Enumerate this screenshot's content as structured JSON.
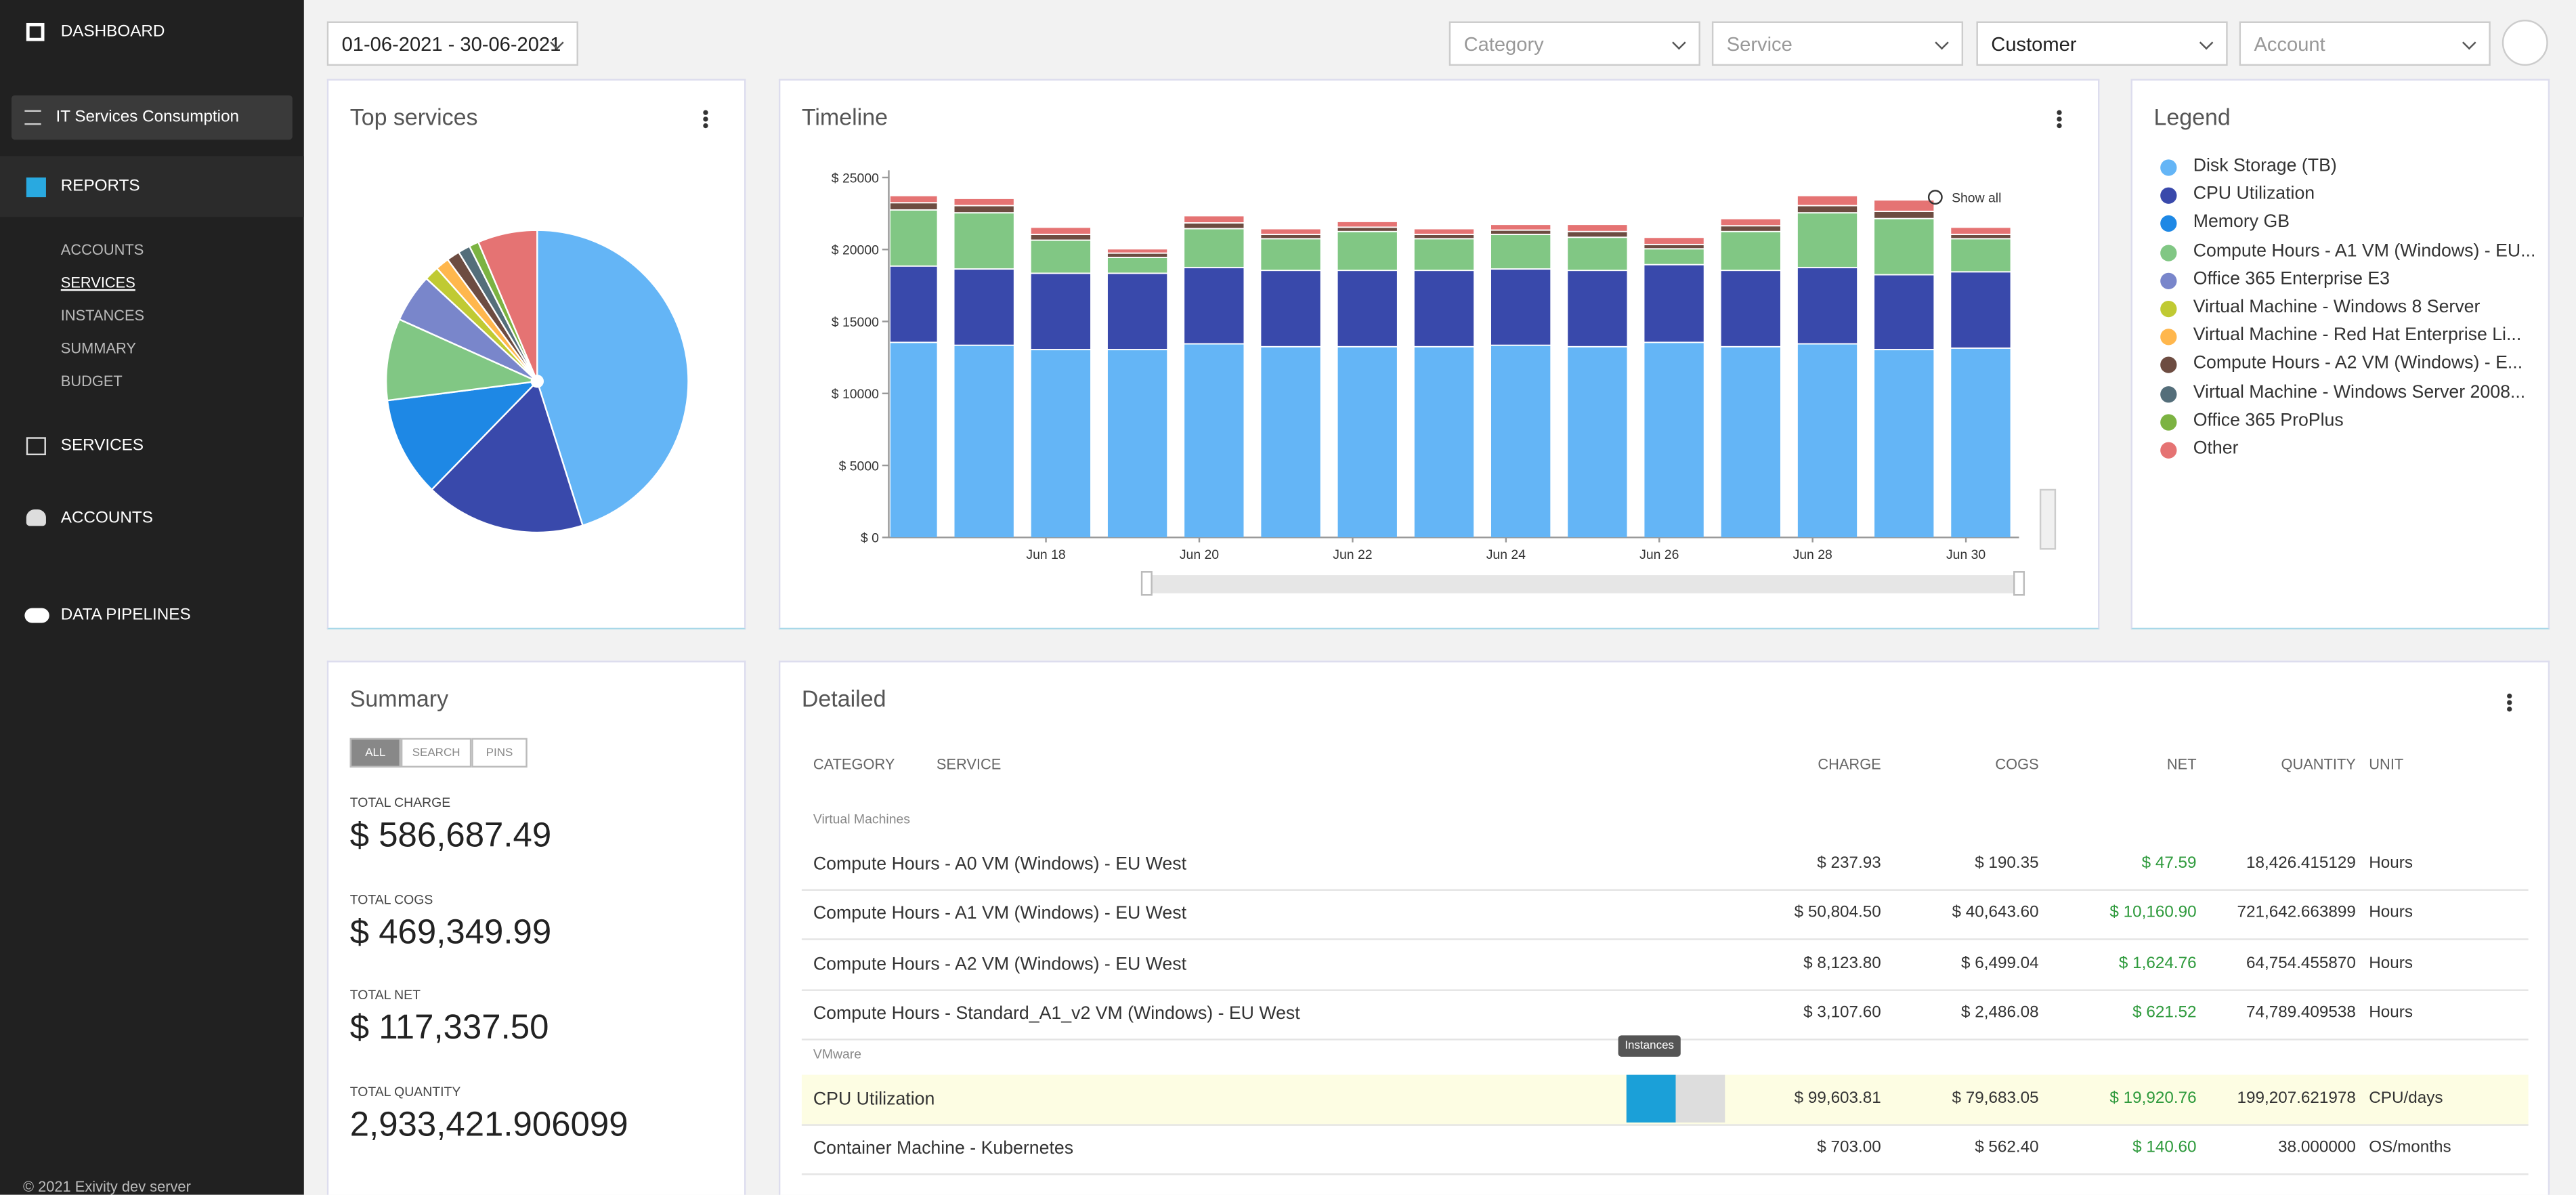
{
  "sidebar": {
    "dashboard": "DASHBOARD",
    "report_select": "IT Services Consumption",
    "reports": "REPORTS",
    "report_links": [
      "ACCOUNTS",
      "SERVICES",
      "INSTANCES",
      "SUMMARY",
      "BUDGET"
    ],
    "services": "SERVICES",
    "accounts": "ACCOUNTS",
    "pipelines": "DATA PIPELINES",
    "footer": "© 2021 Exivity dev server"
  },
  "filters": {
    "date_range": "01-06-2021 - 30-06-2021",
    "category": "Category",
    "service": "Service",
    "customer": "Customer",
    "account": "Account"
  },
  "top_services": {
    "title": "Top services",
    "chart_data": {
      "type": "pie",
      "categories": [
        "Disk Storage (TB)",
        "CPU Utilization",
        "Memory GB",
        "Compute Hours - A1 VM (Windows) - EU...",
        "Office 365 Enterprise E3",
        "Virtual Machine - Windows 8 Server",
        "Virtual Machine - Red Hat Enterprise Li...",
        "Compute Hours - A2 VM (Windows) - E...",
        "Virtual Machine - Windows Server 2008...",
        "Office 365 ProPlus",
        "Other"
      ],
      "values": [
        262000,
        99600,
        62000,
        50800,
        30000,
        9000,
        8500,
        8100,
        7500,
        6000,
        37000
      ],
      "colors": [
        "#64b5f6",
        "#3949ab",
        "#1e88e5",
        "#81c784",
        "#7986cb",
        "#c0ca33",
        "#ffb74d",
        "#6d4c41",
        "#546e7a",
        "#7cb342",
        "#e57373"
      ]
    }
  },
  "timeline": {
    "title": "Timeline",
    "show_all": "Show all",
    "chart_data": {
      "type": "bar",
      "stacked": true,
      "categories": [
        null,
        null,
        "Jun 18",
        null,
        "Jun 20",
        null,
        "Jun 22",
        null,
        "Jun 24",
        null,
        "Jun 26",
        null,
        "Jun 28",
        null,
        "Jun 30"
      ],
      "series": [
        {
          "color": "#64b5f6",
          "values": [
            13500,
            13300,
            13000,
            13000,
            13400,
            13200,
            13200,
            13200,
            13300,
            13200,
            13500,
            13200,
            13400,
            13000,
            13100
          ]
        },
        {
          "color": "#3949ab",
          "values": [
            5300,
            5300,
            5300,
            5300,
            5300,
            5300,
            5300,
            5300,
            5300,
            5300,
            5400,
            5300,
            5300,
            5200,
            5300
          ]
        },
        {
          "color": "#81c784",
          "values": [
            3900,
            3900,
            2300,
            1100,
            2700,
            2200,
            2700,
            2200,
            2400,
            2300,
            1100,
            2700,
            3800,
            3900,
            2300
          ]
        },
        {
          "color": "#6d4c41",
          "values": [
            500,
            500,
            400,
            300,
            400,
            300,
            300,
            300,
            300,
            400,
            300,
            400,
            500,
            500,
            300
          ]
        },
        {
          "color": "#e57373",
          "values": [
            500,
            500,
            500,
            300,
            500,
            400,
            400,
            400,
            400,
            500,
            500,
            500,
            700,
            800,
            500
          ]
        }
      ],
      "ylim": [
        0,
        25500
      ],
      "yticks": [
        {
          "value": 0,
          "label": "$ 0"
        },
        {
          "value": 5000,
          "label": "$ 5000"
        },
        {
          "value": 10000,
          "label": "$ 10000"
        },
        {
          "value": 15000,
          "label": "$ 15000"
        },
        {
          "value": 20000,
          "label": "$ 20000"
        },
        {
          "value": 25000,
          "label": "$ 25000"
        }
      ]
    }
  },
  "legend": {
    "title": "Legend"
  },
  "summary": {
    "title": "Summary",
    "tabs": [
      "ALL",
      "SEARCH",
      "PINS"
    ],
    "stats": [
      {
        "label": "TOTAL CHARGE",
        "value": "$ 586,687.49"
      },
      {
        "label": "TOTAL COGS",
        "value": "$ 469,349.99"
      },
      {
        "label": "TOTAL NET",
        "value": "$ 117,337.50"
      },
      {
        "label": "TOTAL QUANTITY",
        "value": "2,933,421.906099"
      }
    ]
  },
  "detailed": {
    "title": "Detailed",
    "columns": [
      "CATEGORY",
      "SERVICE",
      "CHARGE",
      "COGS",
      "NET",
      "QUANTITY",
      "UNIT"
    ],
    "tooltip": "Instances",
    "groups": [
      {
        "name": "Virtual Machines",
        "rows": [
          [
            "Compute Hours - A0 VM (Windows) - EU West",
            "$ 237.93",
            "$ 190.35",
            "$ 47.59",
            "18,426.415129",
            "Hours"
          ],
          [
            "Compute Hours - A1 VM (Windows) - EU West",
            "$ 50,804.50",
            "$ 40,643.60",
            "$ 10,160.90",
            "721,642.663899",
            "Hours"
          ],
          [
            "Compute Hours - A2 VM (Windows) - EU West",
            "$ 8,123.80",
            "$ 6,499.04",
            "$ 1,624.76",
            "64,754.455870",
            "Hours"
          ],
          [
            "Compute Hours - Standard_A1_v2 VM (Windows) - EU West",
            "$ 3,107.60",
            "$ 2,486.08",
            "$ 621.52",
            "74,789.409538",
            "Hours"
          ]
        ]
      },
      {
        "name": "VMware",
        "rows": [
          [
            "CPU Utilization",
            "$ 99,603.81",
            "$ 79,683.05",
            "$ 19,920.76",
            "199,207.621978",
            "CPU/days"
          ],
          [
            "Container Machine - Kubernetes",
            "$ 703.00",
            "$ 562.40",
            "$ 140.60",
            "38.000000",
            "OS/months"
          ]
        ]
      }
    ]
  }
}
